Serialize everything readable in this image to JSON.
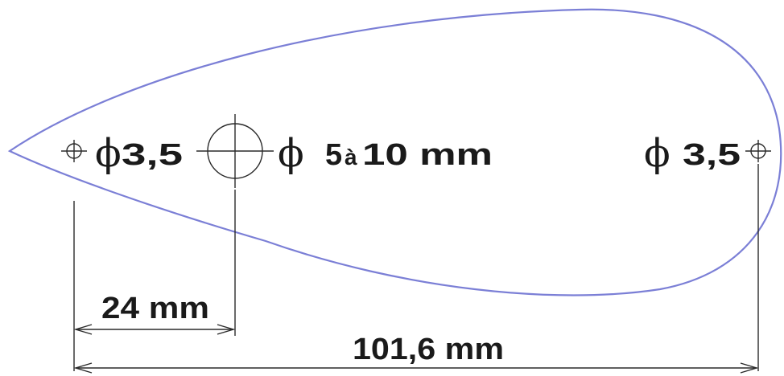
{
  "diagram": {
    "outline_color": "#7b7fd6",
    "ink_color": "#2a2a2a",
    "holes": {
      "left": {
        "diameter_symbol": "ϕ",
        "diameter_value": "3,5"
      },
      "center": {
        "diameter_symbol": "ϕ",
        "diameter_value": "5",
        "range_word": "à",
        "range_value": "10 mm"
      },
      "right": {
        "diameter_symbol": "ϕ",
        "diameter_value": "3,5"
      }
    },
    "dimensions": {
      "short": {
        "label": "24 mm"
      },
      "overall": {
        "label": "101,6 mm"
      }
    }
  }
}
